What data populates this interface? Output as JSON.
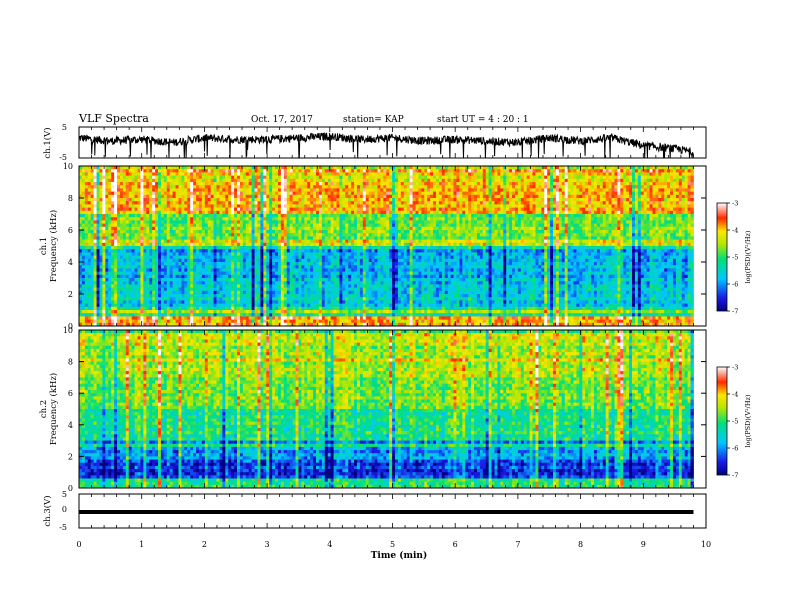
{
  "header": {
    "title": "VLF Spectra",
    "date": "Oct. 17, 2017",
    "station": "station= KAP",
    "start_ut": "start  UT =   4 : 20 : 1"
  },
  "colors": {
    "trace": "#000000",
    "colormap": [
      "#1a1ae6",
      "#00c8ff",
      "#00e07a",
      "#b4e600",
      "#ffe600",
      "#ff2a00"
    ]
  },
  "chart_data": [
    {
      "id": "ch1-waveform",
      "type": "line",
      "ylabel": "ch.1(V)",
      "xlim": [
        0,
        10
      ],
      "ylim": [
        -5,
        5
      ],
      "yticks": [
        "5",
        "-5"
      ],
      "description_level": "noisy signal near 0 to 3 V with dips toward -5 V",
      "series": [
        {
          "x": [
            0,
            0.5,
            1,
            1.5,
            2,
            2.5,
            3,
            3.5,
            4,
            4.5,
            5,
            5.5,
            6,
            6.5,
            7,
            7.5,
            8,
            8.5,
            9,
            9.5,
            9.8
          ],
          "values": [
            1.5,
            0.5,
            1.0,
            0.0,
            1.5,
            1.0,
            1.0,
            1.5,
            2.0,
            1.0,
            1.5,
            0.5,
            1.0,
            0.5,
            0.0,
            1.5,
            0.5,
            1.5,
            -1.0,
            -2.0,
            -3.0
          ]
        }
      ]
    },
    {
      "id": "ch1-spectrogram",
      "type": "heatmap",
      "ylabel": "ch.1\nFrequency (kHz)",
      "ylabel_lines": [
        "ch.1",
        "Frequency  (kHz)"
      ],
      "xlim": [
        0,
        10
      ],
      "ylim": [
        0,
        10
      ],
      "yticks": [
        "0",
        "2",
        "4",
        "6",
        "8",
        "10"
      ],
      "colorbar": {
        "label": "log(PSD)(V²/Hz)",
        "range": [
          -7,
          -3
        ],
        "ticks": [
          "-3",
          "-4",
          "-5",
          "-6",
          "-7"
        ]
      },
      "bands_khz": [
        [
          0,
          0.5,
          -3.8
        ],
        [
          0.5,
          1.2,
          -5.2
        ],
        [
          1.2,
          2.5,
          -5.6
        ],
        [
          2.5,
          5,
          -5.8
        ],
        [
          5,
          5.5,
          -4.3
        ],
        [
          5.5,
          7,
          -4.7
        ],
        [
          7,
          9,
          -3.9
        ],
        [
          9,
          9.8,
          -4.1
        ]
      ],
      "data_end_min": 9.8
    },
    {
      "id": "ch2-spectrogram",
      "type": "heatmap",
      "ylabel_lines": [
        "ch.2",
        "Frequency  (kHz)"
      ],
      "xlim": [
        0,
        10
      ],
      "ylim": [
        0,
        10
      ],
      "yticks": [
        "0",
        "2",
        "4",
        "6",
        "8",
        "10"
      ],
      "colorbar": {
        "label": "log(PSD)(V²/Hz)",
        "range": [
          -7,
          -3
        ],
        "ticks": [
          "-3",
          "-4",
          "-5",
          "-6",
          "-7"
        ]
      },
      "bands_khz": [
        [
          0,
          0.6,
          -5.0
        ],
        [
          0.6,
          1.8,
          -6.4
        ],
        [
          1.8,
          3,
          -5.9
        ],
        [
          3,
          5,
          -5.1
        ],
        [
          5,
          7,
          -4.7
        ],
        [
          7,
          9,
          -4.5
        ],
        [
          9,
          9.8,
          -4.3
        ]
      ],
      "data_end_min": 9.8
    },
    {
      "id": "ch3-waveform",
      "type": "line",
      "ylabel": "ch.3(V)",
      "xlim": [
        0,
        10
      ],
      "ylim": [
        -5,
        5
      ],
      "yticks": [
        "5",
        "0",
        "-5"
      ],
      "xlabel": "Time  (min)",
      "xticks": [
        "0",
        "1",
        "2",
        "3",
        "4",
        "5",
        "6",
        "7",
        "8",
        "9",
        "10"
      ],
      "series": [
        {
          "x": [
            0,
            9.8
          ],
          "values": [
            0.0,
            0.0
          ]
        }
      ]
    }
  ]
}
